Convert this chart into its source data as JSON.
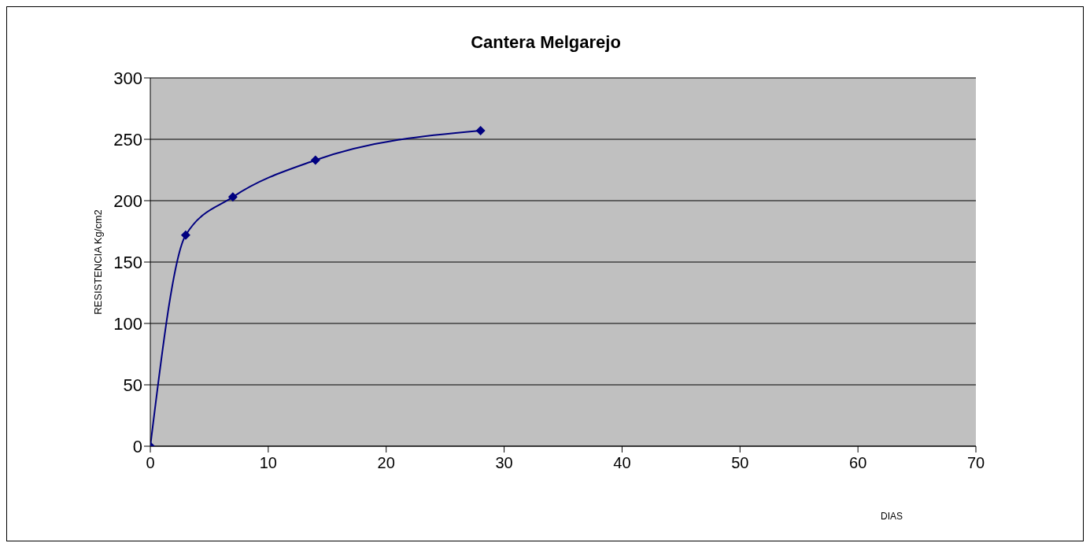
{
  "chart_data": {
    "type": "line",
    "title": "Cantera Melgarejo",
    "xlabel": "DIAS",
    "ylabel": "RESISTENCIA  Kg/cm2",
    "x": [
      0,
      3,
      7,
      14,
      28
    ],
    "series": [
      {
        "color": "#000080",
        "values": [
          0,
          172,
          203,
          233,
          257
        ]
      }
    ],
    "xlim": [
      0,
      70
    ],
    "xticks": [
      0,
      10,
      20,
      30,
      40,
      50,
      60,
      70
    ],
    "ylim": [
      0,
      300
    ],
    "yticks": [
      0,
      50,
      100,
      150,
      200,
      250,
      300
    ],
    "grid": "y",
    "marker": "diamond",
    "line_style": "solid"
  }
}
